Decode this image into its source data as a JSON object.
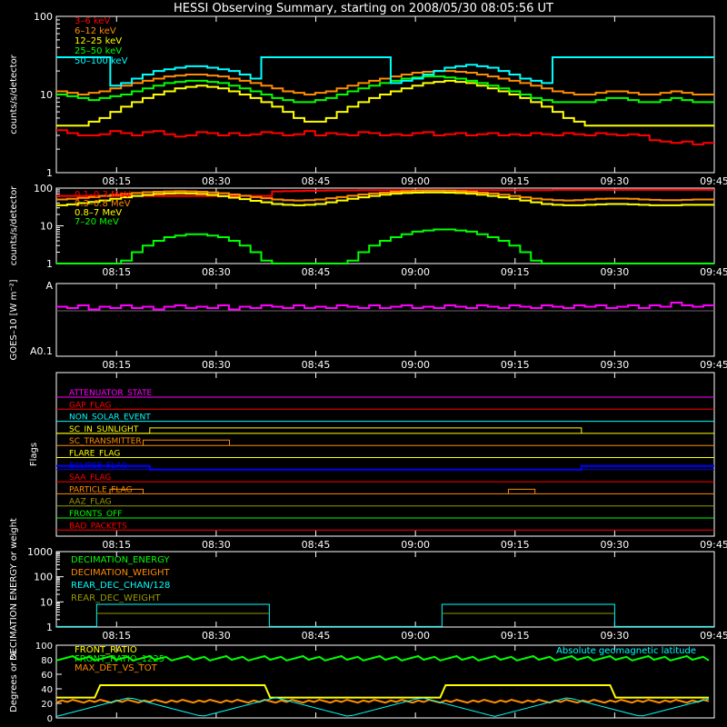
{
  "title": "HESSI Observing Summary, starting on 2008/05/30 08:05:56 UT",
  "time_ticks": [
    "08:15",
    "08:30",
    "08:45",
    "09:00",
    "09:15",
    "09:30",
    "09:45"
  ],
  "chart_data": [
    {
      "type": "line",
      "panel": "count-rates-low",
      "ylabel": "counts/s/detector",
      "yscale": "log",
      "ylim": [
        1,
        100
      ],
      "yticks": [
        "1",
        "10",
        "100"
      ],
      "legend_position": "top-left",
      "series": [
        {
          "name": "3–6 keV",
          "color": "#ff0000",
          "values": [
            3.5,
            3.2,
            3.0,
            3.0,
            3.1,
            3.4,
            3.2,
            3.0,
            3.3,
            3.4,
            3.1,
            2.9,
            3.0,
            3.3,
            3.2,
            3.0,
            3.2,
            3.0,
            3.1,
            3.3,
            3.2,
            3.0,
            3.1,
            3.4,
            3.0,
            3.2,
            3.1,
            3.0,
            3.3,
            3.2,
            3.0,
            3.1,
            3.0,
            3.2,
            3.3,
            3.0,
            3.1,
            3.2,
            3.0,
            3.1,
            3.2,
            3.0,
            3.1,
            3.0,
            3.2,
            3.1,
            3.0,
            3.2,
            3.1,
            3.0,
            3.2,
            3.1,
            3.0,
            3.1,
            3.0,
            2.6,
            2.5,
            2.4,
            2.5,
            2.3,
            2.4
          ]
        },
        {
          "name": "6–12 keV",
          "color": "#ff8c00",
          "values": [
            11,
            10.5,
            10,
            10.5,
            11,
            12,
            13,
            14,
            15,
            16,
            17,
            17.5,
            18,
            18,
            17.5,
            17,
            16,
            15,
            14,
            13,
            12,
            11,
            10.5,
            10,
            10.5,
            11,
            12,
            13,
            14,
            15,
            16,
            17,
            18,
            19,
            19.5,
            20,
            20,
            19.5,
            19,
            18,
            17,
            16,
            15,
            14,
            13,
            12,
            11,
            10.5,
            10,
            10,
            10.5,
            11,
            11,
            10.5,
            10,
            10,
            10.5,
            11,
            10.5,
            10,
            10
          ]
        },
        {
          "name": "12–25 keV",
          "color": "#ffff00",
          "values": [
            4,
            4,
            4,
            4.5,
            5,
            6,
            7,
            8,
            9,
            10,
            11,
            12,
            12.5,
            13,
            12.5,
            12,
            11,
            10,
            9,
            8,
            7,
            6,
            5,
            4.5,
            4.5,
            5,
            6,
            7,
            8,
            9,
            10,
            11,
            12,
            13,
            14,
            14.5,
            15,
            14.5,
            14,
            13,
            12,
            11,
            10,
            9,
            8,
            7,
            6,
            5,
            4.5,
            4,
            4,
            4,
            4,
            4,
            4,
            4,
            4,
            4,
            4,
            4,
            4
          ]
        },
        {
          "name": "25–50 keV",
          "color": "#00ff00",
          "values": [
            10,
            9.5,
            9,
            8.5,
            9,
            9.5,
            10,
            11,
            12,
            13,
            14,
            14.5,
            15,
            15,
            14.5,
            14,
            13,
            12,
            11,
            10,
            9,
            8.5,
            8,
            8,
            8.5,
            9,
            10,
            11,
            12,
            13,
            14,
            15,
            16,
            16.5,
            17,
            17,
            16.5,
            16,
            15,
            14,
            13,
            12,
            11,
            10,
            9,
            8.5,
            8,
            8,
            8,
            8,
            8.5,
            9,
            9,
            8.5,
            8,
            8,
            8.5,
            9,
            8.5,
            8,
            8
          ]
        },
        {
          "name": "50–100 keV",
          "color": "#00ffff",
          "values": [
            30,
            30,
            30,
            30,
            30,
            13,
            14,
            16,
            18,
            20,
            21,
            22,
            23,
            23,
            22,
            21,
            20,
            18,
            16,
            30,
            30,
            30,
            30,
            30,
            30,
            30,
            30,
            30,
            30,
            30,
            30,
            14,
            15,
            16,
            18,
            20,
            22,
            23,
            24,
            23,
            22,
            20,
            18,
            16,
            15,
            14,
            30,
            30,
            30,
            30,
            30,
            30,
            30,
            30,
            30,
            30,
            30,
            30,
            30,
            30,
            30
          ]
        }
      ]
    },
    {
      "type": "line",
      "panel": "count-rates-high",
      "ylabel": "counts/s/detector",
      "yscale": "log",
      "ylim": [
        1,
        100
      ],
      "yticks": [
        "1",
        "10",
        "100"
      ],
      "legend_position": "top-left",
      "series": [
        {
          "name": "0.1–0.3 MeV",
          "color": "#ff0000",
          "values": [
            62,
            62,
            62,
            62,
            62,
            62,
            62,
            62,
            62,
            62,
            62,
            62,
            62,
            62,
            62,
            62,
            62,
            62,
            62,
            62,
            82,
            83,
            84,
            85,
            86,
            87,
            87,
            87,
            88,
            88,
            88,
            88,
            88,
            88,
            88,
            88,
            88,
            88,
            88,
            88,
            88,
            88,
            88,
            88,
            88,
            88,
            90,
            90,
            90,
            90,
            90,
            90,
            90,
            90,
            90,
            90,
            90,
            90,
            90,
            90,
            90
          ]
        },
        {
          "name": "0.3–0.8 MeV",
          "color": "#ff8c00",
          "values": [
            50,
            52,
            55,
            58,
            62,
            66,
            70,
            74,
            78,
            80,
            82,
            83,
            82,
            80,
            77,
            73,
            68,
            63,
            58,
            54,
            50,
            48,
            47,
            48,
            50,
            54,
            58,
            63,
            68,
            72,
            76,
            80,
            83,
            85,
            86,
            86,
            85,
            83,
            80,
            76,
            72,
            67,
            62,
            57,
            53,
            50,
            48,
            47,
            48,
            50,
            52,
            53,
            53,
            52,
            50,
            49,
            48,
            48,
            49,
            50,
            50
          ]
        },
        {
          "name": "0.8–7 MeV",
          "color": "#ffff00",
          "values": [
            35,
            37,
            40,
            43,
            47,
            52,
            57,
            62,
            66,
            70,
            72,
            73,
            72,
            70,
            66,
            61,
            56,
            51,
            46,
            42,
            38,
            36,
            35,
            36,
            38,
            42,
            47,
            52,
            57,
            62,
            67,
            71,
            74,
            76,
            77,
            77,
            76,
            74,
            71,
            67,
            62,
            57,
            52,
            47,
            42,
            38,
            36,
            35,
            35,
            36,
            37,
            38,
            38,
            37,
            36,
            35,
            35,
            35,
            36,
            36,
            36
          ]
        },
        {
          "name": "7–20 MeV",
          "color": "#00ff00",
          "values": [
            1,
            1,
            1,
            1,
            1,
            1,
            1.2,
            2,
            3,
            4,
            5,
            5.5,
            6,
            6,
            5.5,
            5,
            4,
            3,
            2,
            1.2,
            1,
            1,
            1,
            1,
            1,
            1,
            1,
            1.2,
            2,
            3,
            4,
            5,
            6,
            7,
            7.5,
            8,
            8,
            7.5,
            7,
            6,
            5,
            4,
            3,
            2,
            1.2,
            1,
            1,
            1,
            1,
            1,
            1,
            1,
            1,
            1,
            1,
            1,
            1,
            1,
            1,
            1,
            1
          ]
        }
      ]
    },
    {
      "type": "line",
      "panel": "goes",
      "ylabel": "GOES–10 [W m⁻²]",
      "yticks": [
        "A",
        "A0.1"
      ],
      "series": [
        {
          "name": "GOES-10",
          "color": "#ff00ff",
          "values": [
            0.55,
            0.5,
            0.6,
            0.45,
            0.55,
            0.5,
            0.6,
            0.5,
            0.55,
            0.45,
            0.55,
            0.6,
            0.5,
            0.55,
            0.5,
            0.6,
            0.45,
            0.55,
            0.5,
            0.6,
            0.55,
            0.5,
            0.6,
            0.5,
            0.55,
            0.5,
            0.6,
            0.55,
            0.5,
            0.6,
            0.5,
            0.55,
            0.6,
            0.5,
            0.55,
            0.5,
            0.6,
            0.55,
            0.5,
            0.6,
            0.55,
            0.5,
            0.6,
            0.55,
            0.5,
            0.6,
            0.55,
            0.5,
            0.6,
            0.55,
            0.6,
            0.5,
            0.55,
            0.6,
            0.5,
            0.6,
            0.55,
            0.7,
            0.6,
            0.55,
            0.6
          ]
        }
      ]
    },
    {
      "type": "line",
      "panel": "flags",
      "ylabel": "Flags",
      "series": [
        {
          "name": "ATTENUATOR_STATE",
          "color": "#ff00ff"
        },
        {
          "name": "GAP_FLAG",
          "color": "#ff0000"
        },
        {
          "name": "NON_SOLAR_EVENT",
          "color": "#00ffff"
        },
        {
          "name": "SC_IN_SUNLIGHT",
          "color": "#ffff00"
        },
        {
          "name": "SC_TRANSMITTER",
          "color": "#ff8c00"
        },
        {
          "name": "FLARE_FLAG",
          "color": "#ffff00"
        },
        {
          "name": "ECLIPSE_FLAG",
          "color": "#0000ff"
        },
        {
          "name": "SAA_FLAG",
          "color": "#ff0000"
        },
        {
          "name": "PARTICLE_FLAG",
          "color": "#ff8c00"
        },
        {
          "name": "AAZ_FLAG",
          "color": "#999900"
        },
        {
          "name": "FRONTS_OFF",
          "color": "#00ff00"
        },
        {
          "name": "BAD_PACKETS",
          "color": "#ff0000"
        }
      ]
    },
    {
      "type": "line",
      "panel": "decimation",
      "ylabel": "DECIMATION ENERGY or weight",
      "yscale": "log",
      "ylim": [
        1,
        1000
      ],
      "yticks": [
        "1",
        "10",
        "100",
        "1000"
      ],
      "series": [
        {
          "name": "DECIMATION_ENERGY",
          "color": "#00ff00"
        },
        {
          "name": "DECIMATION_WEIGHT",
          "color": "#ff8c00"
        },
        {
          "name": "REAR_DEC_CHAN/128",
          "color": "#00ffff"
        },
        {
          "name": "REAR_DEC_WEIGHT",
          "color": "#999900"
        }
      ]
    },
    {
      "type": "line",
      "panel": "ratios",
      "ylabel": "Degrees or %",
      "ylim": [
        0,
        100
      ],
      "yticks": [
        "0",
        "20",
        "40",
        "60",
        "80",
        "100"
      ],
      "series": [
        {
          "name": "FRONT_RATIO",
          "color": "#ffff00"
        },
        {
          "name": "FRONT_RATIO_1225",
          "color": "#00ff00"
        },
        {
          "name": "MAX_DET_VS_TOT",
          "color": "#ff8c00"
        },
        {
          "name": "Absolute geomagnetic latitude",
          "color": "#00ffff"
        }
      ]
    }
  ]
}
